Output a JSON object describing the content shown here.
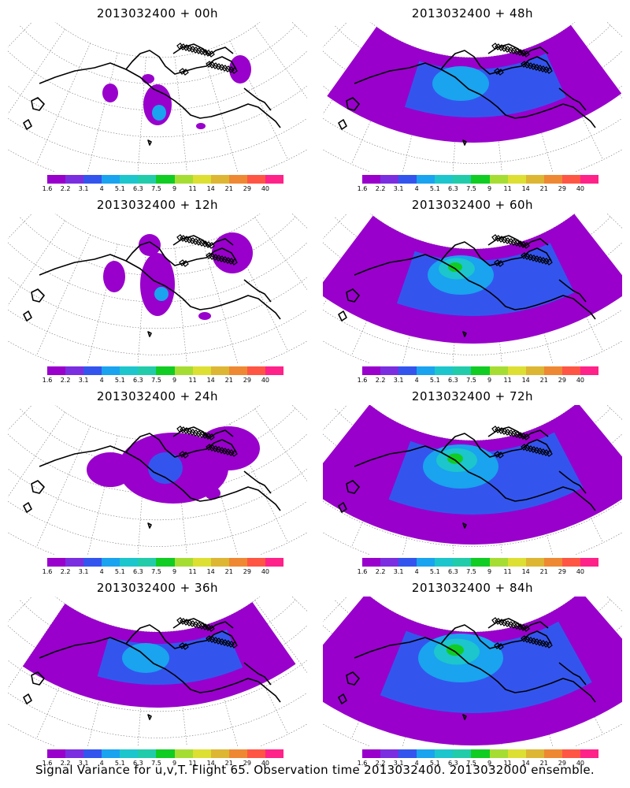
{
  "panels": [
    {
      "title": "2013032400 + 00h",
      "coverage": 0
    },
    {
      "title": "2013032400 + 48h",
      "coverage": 4
    },
    {
      "title": "2013032400 + 12h",
      "coverage": 1
    },
    {
      "title": "2013032400 + 60h",
      "coverage": 5
    },
    {
      "title": "2013032400 + 24h",
      "coverage": 2
    },
    {
      "title": "2013032400 + 72h",
      "coverage": 6
    },
    {
      "title": "2013032400 + 36h",
      "coverage": 3
    },
    {
      "title": "2013032400 + 84h",
      "coverage": 7
    }
  ],
  "colorbar": {
    "colors": [
      "#9900cc",
      "#7a2ee0",
      "#3355ee",
      "#1aa3ee",
      "#1cc6cc",
      "#22ccaa",
      "#11cc22",
      "#a6dd33",
      "#dde033",
      "#ddb633",
      "#ee8833",
      "#ff5544",
      "#ff2288"
    ],
    "labels": [
      "1.6",
      "2.2",
      "3.1",
      "4",
      "5.1",
      "6.3",
      "7.5",
      "9",
      "11",
      "14",
      "21",
      "29",
      "40"
    ]
  },
  "caption": "Signal Variance for u,v,T. Flight 65. Observation time 2013032400. 2013032000 ensemble."
}
